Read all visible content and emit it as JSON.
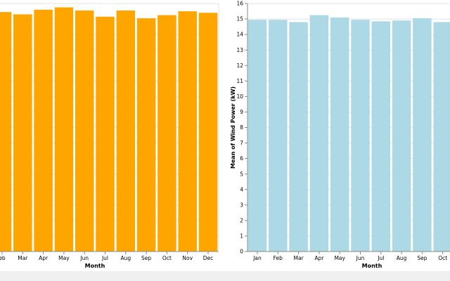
{
  "chart_data": [
    {
      "type": "bar",
      "title": "",
      "xlabel": "Month",
      "ylabel": "",
      "ylim": [
        0,
        16
      ],
      "grid": true,
      "color": "#ffa500",
      "categories": [
        "Feb",
        "Mar",
        "Apr",
        "May",
        "Jun",
        "Jul",
        "Aug",
        "Sep",
        "Oct",
        "Nov",
        "Dec"
      ],
      "tick_labels": [
        "eb",
        "Mar",
        "Apr",
        "May",
        "Jun",
        "Jul",
        "Aug",
        "Sep",
        "Oct",
        "Nov",
        "Dec"
      ],
      "values": [
        15.45,
        15.3,
        15.6,
        15.75,
        15.55,
        15.15,
        15.55,
        15.05,
        15.25,
        15.5,
        15.4
      ]
    },
    {
      "type": "bar",
      "title": "",
      "xlabel": "Month",
      "ylabel": "Mean of Wind Power (kW)",
      "ylim": [
        0,
        16
      ],
      "yticks": [
        0,
        1,
        2,
        3,
        4,
        5,
        6,
        7,
        8,
        9,
        10,
        11,
        12,
        13,
        14,
        15,
        16
      ],
      "grid": true,
      "color": "#add8e6",
      "categories": [
        "Jan",
        "Feb",
        "Mar",
        "Apr",
        "May",
        "Jun",
        "Jul",
        "Aug",
        "Sep",
        "Oct"
      ],
      "tick_labels": [
        "Jan",
        "Feb",
        "Mar",
        "Apr",
        "May",
        "Jun",
        "Jul",
        "Aug",
        "Sep",
        "Oct"
      ],
      "values": [
        14.95,
        14.95,
        14.8,
        15.25,
        15.1,
        14.95,
        14.85,
        14.9,
        15.05,
        14.8
      ]
    }
  ]
}
